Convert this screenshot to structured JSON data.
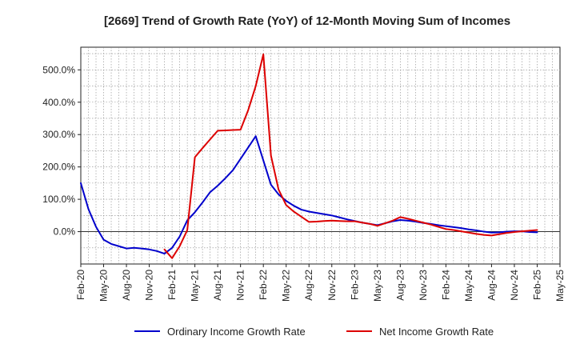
{
  "chart_data": {
    "type": "line",
    "title": "[2669]  Trend of Growth Rate (YoY) of 12-Month Moving Sum of Incomes",
    "xlabel": "",
    "ylabel": "",
    "ylim": [
      -100,
      570
    ],
    "y_ticks": [
      0,
      100,
      200,
      300,
      400,
      500
    ],
    "y_tick_labels": [
      "0.0%",
      "100.0%",
      "200.0%",
      "300.0%",
      "400.0%",
      "500.0%"
    ],
    "x_ticks": [
      "Feb-20",
      "May-20",
      "Aug-20",
      "Nov-20",
      "Feb-21",
      "May-21",
      "Aug-21",
      "Nov-21",
      "Feb-22",
      "May-22",
      "Aug-22",
      "Nov-22",
      "Feb-23",
      "May-23",
      "Aug-23",
      "Nov-23",
      "Feb-24",
      "May-24",
      "Aug-24",
      "Nov-24",
      "Feb-25",
      "May-25"
    ],
    "x": [
      "Feb-20",
      "Mar-20",
      "Apr-20",
      "May-20",
      "Jun-20",
      "Jul-20",
      "Aug-20",
      "Sep-20",
      "Oct-20",
      "Nov-20",
      "Dec-20",
      "Jan-21",
      "Feb-21",
      "Mar-21",
      "Apr-21",
      "May-21",
      "Jun-21",
      "Jul-21",
      "Aug-21",
      "Sep-21",
      "Oct-21",
      "Nov-21",
      "Dec-21",
      "Jan-22",
      "Feb-22",
      "Mar-22",
      "Apr-22",
      "May-22",
      "Jun-22",
      "Jul-22",
      "Aug-22",
      "Sep-22",
      "Oct-22",
      "Nov-22",
      "Dec-22",
      "Jan-23",
      "Feb-23",
      "Mar-23",
      "Apr-23",
      "May-23",
      "Jun-23",
      "Jul-23",
      "Aug-23",
      "Sep-23",
      "Oct-23",
      "Nov-23",
      "Dec-23",
      "Jan-24",
      "Feb-24",
      "Mar-24",
      "Apr-24",
      "May-24",
      "Jun-24",
      "Jul-24",
      "Aug-24",
      "Sep-24",
      "Oct-24",
      "Nov-24",
      "Dec-24",
      "Jan-25",
      "Feb-25",
      "Mar-25",
      "Apr-25",
      "May-25"
    ],
    "grid": true,
    "legend_position": "bottom",
    "series": [
      {
        "name": "Ordinary Income Growth Rate",
        "color": "#0000cc",
        "values": [
          150,
          70,
          15,
          -25,
          -38,
          -45,
          -52,
          -50,
          -52,
          -55,
          -60,
          -68,
          -50,
          -15,
          35,
          60,
          90,
          122,
          142,
          165,
          190,
          225,
          260,
          295,
          220,
          145,
          115,
          95,
          80,
          68,
          62,
          58,
          54,
          50,
          44,
          38,
          33,
          28,
          24,
          20,
          26,
          32,
          36,
          34,
          31,
          27,
          24,
          20,
          17,
          14,
          11,
          7,
          4,
          0,
          -3,
          -2,
          0,
          1,
          1,
          -1,
          -2,
          null,
          null,
          null
        ]
      },
      {
        "name": "Net Income Growth Rate",
        "color": "#dd0000",
        "values": [
          null,
          null,
          null,
          null,
          null,
          null,
          null,
          null,
          null,
          null,
          null,
          -55,
          -82,
          -45,
          5,
          230,
          258,
          285,
          312,
          313,
          314,
          315,
          375,
          450,
          548,
          235,
          130,
          82,
          62,
          46,
          30,
          31,
          33,
          34,
          33,
          32,
          32,
          28,
          24,
          18,
          26,
          34,
          45,
          40,
          34,
          28,
          22,
          15,
          8,
          5,
          1,
          -3,
          -7,
          -10,
          -12,
          -8,
          -4,
          -1,
          1,
          3,
          5,
          null,
          null,
          null
        ]
      }
    ]
  }
}
